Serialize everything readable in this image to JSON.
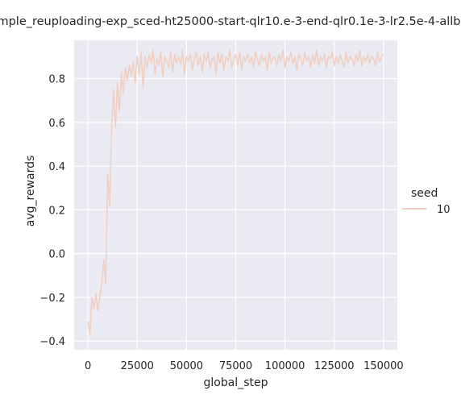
{
  "chart_data": {
    "type": "line",
    "title": "mple_reuploading-exp_sced-ht25000-start-qlr10.e-3-end-qlr0.1e-3-lr2.5e-4-allbi",
    "xlabel": "global_step",
    "ylabel": "avg_rewards",
    "xlim": [
      -7000,
      157000
    ],
    "ylim": [
      -0.44,
      0.975
    ],
    "x_ticks": [
      0,
      25000,
      50000,
      75000,
      100000,
      125000,
      150000
    ],
    "x_tick_labels": [
      "0",
      "25000",
      "50000",
      "75000",
      "100000",
      "125000",
      "150000"
    ],
    "y_ticks": [
      -0.4,
      -0.2,
      0.0,
      0.2,
      0.4,
      0.6,
      0.8
    ],
    "y_tick_labels": [
      "−0.4",
      "−0.2",
      "0.0",
      "0.2",
      "0.4",
      "0.6",
      "0.8"
    ],
    "grid": true,
    "legend": {
      "title": "seed",
      "placement": "right",
      "entries": [
        {
          "label": "10",
          "color": "#f1cfc2"
        }
      ]
    },
    "colors": {
      "background": "#eaeaf2",
      "grid": "#ffffff",
      "line": "#f1cfc2"
    },
    "series": [
      {
        "name": "10",
        "x": [
          0,
          1000,
          2000,
          3000,
          4000,
          5000,
          6000,
          7000,
          8000,
          9000,
          10000,
          11000,
          12000,
          13000,
          14000,
          15000,
          16000,
          17000,
          18000,
          19000,
          20000,
          21000,
          22000,
          23000,
          24000,
          25000,
          26000,
          27000,
          28000,
          29000,
          30000,
          31000,
          32000,
          33000,
          34000,
          35000,
          36000,
          37000,
          38000,
          39000,
          40000,
          41000,
          42000,
          43000,
          44000,
          45000,
          46000,
          47000,
          48000,
          49000,
          50000,
          51000,
          52000,
          53000,
          54000,
          55000,
          56000,
          57000,
          58000,
          59000,
          60000,
          61000,
          62000,
          63000,
          64000,
          65000,
          66000,
          67000,
          68000,
          69000,
          70000,
          71000,
          72000,
          73000,
          74000,
          75000,
          76000,
          77000,
          78000,
          79000,
          80000,
          81000,
          82000,
          83000,
          84000,
          85000,
          86000,
          87000,
          88000,
          89000,
          90000,
          91000,
          92000,
          93000,
          94000,
          95000,
          96000,
          97000,
          98000,
          99000,
          100000,
          101000,
          102000,
          103000,
          104000,
          105000,
          106000,
          107000,
          108000,
          109000,
          110000,
          111000,
          112000,
          113000,
          114000,
          115000,
          116000,
          117000,
          118000,
          119000,
          120000,
          121000,
          122000,
          123000,
          124000,
          125000,
          126000,
          127000,
          128000,
          129000,
          130000,
          131000,
          132000,
          133000,
          134000,
          135000,
          136000,
          137000,
          138000,
          139000,
          140000,
          141000,
          142000,
          143000,
          144000,
          145000,
          146000,
          147000,
          148000,
          149000,
          150000
        ],
        "values": [
          -0.31,
          -0.37,
          -0.2,
          -0.25,
          -0.18,
          -0.26,
          -0.2,
          -0.14,
          -0.03,
          -0.14,
          0.36,
          0.22,
          0.58,
          0.75,
          0.58,
          0.78,
          0.65,
          0.83,
          0.73,
          0.85,
          0.79,
          0.86,
          0.81,
          0.88,
          0.78,
          0.9,
          0.82,
          0.92,
          0.76,
          0.9,
          0.85,
          0.91,
          0.87,
          0.93,
          0.82,
          0.89,
          0.86,
          0.92,
          0.81,
          0.9,
          0.88,
          0.85,
          0.92,
          0.83,
          0.91,
          0.87,
          0.9,
          0.86,
          0.93,
          0.82,
          0.9,
          0.88,
          0.91,
          0.84,
          0.89,
          0.92,
          0.86,
          0.9,
          0.83,
          0.91,
          0.88,
          0.92,
          0.85,
          0.89,
          0.9,
          0.82,
          0.92,
          0.87,
          0.91,
          0.84,
          0.9,
          0.88,
          0.93,
          0.85,
          0.89,
          0.91,
          0.86,
          0.92,
          0.84,
          0.9,
          0.88,
          0.91,
          0.87,
          0.9,
          0.85,
          0.92,
          0.89,
          0.86,
          0.91,
          0.88,
          0.9,
          0.84,
          0.92,
          0.87,
          0.9,
          0.89,
          0.86,
          0.91,
          0.88,
          0.93,
          0.85,
          0.9,
          0.88,
          0.92,
          0.87,
          0.9,
          0.84,
          0.91,
          0.89,
          0.86,
          0.92,
          0.88,
          0.9,
          0.85,
          0.91,
          0.87,
          0.93,
          0.86,
          0.9,
          0.88,
          0.91,
          0.85,
          0.9,
          0.89,
          0.92,
          0.86,
          0.9,
          0.87,
          0.91,
          0.88,
          0.85,
          0.92,
          0.87,
          0.9,
          0.89,
          0.86,
          0.91,
          0.88,
          0.93,
          0.86,
          0.9,
          0.88,
          0.91,
          0.87,
          0.9,
          0.89,
          0.86,
          0.92,
          0.88,
          0.9,
          0.91
        ]
      }
    ]
  }
}
